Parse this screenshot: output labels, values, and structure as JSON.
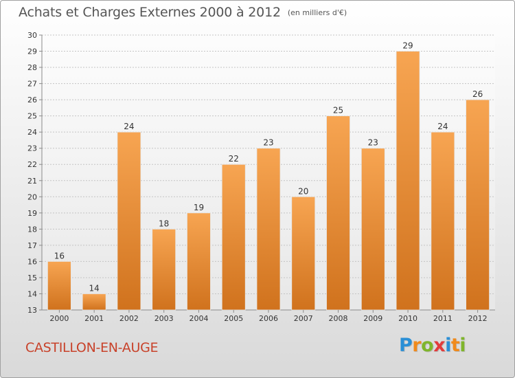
{
  "header": {
    "title": "Achats et Charges Externes 2000 à 2012",
    "unit": "(en milliers d'€)"
  },
  "footer": {
    "commune": "CASTILLON-EN-AUGE",
    "logo": {
      "letters": [
        "P",
        "r",
        "o",
        "x",
        "i",
        "t",
        "i"
      ],
      "colors": [
        "#2a8fd6",
        "#f08a1c",
        "#7fb52b",
        "#e23b3b",
        "#2a8fd6",
        "#f08a1c",
        "#7fb52b"
      ]
    }
  },
  "colors": {
    "bar_top": "#f7a552",
    "bar_bottom": "#d0721d",
    "axis": "#8a8a8a",
    "grid": "#c4c4c4",
    "text": "#333333"
  },
  "chart_data": {
    "type": "bar",
    "title": "Achats et Charges Externes 2000 à 2012",
    "subtitle": "(en milliers d'€)",
    "xlabel": "",
    "ylabel": "",
    "categories": [
      "2000",
      "2001",
      "2002",
      "2003",
      "2004",
      "2005",
      "2006",
      "2007",
      "2008",
      "2009",
      "2010",
      "2011",
      "2012"
    ],
    "values": [
      16,
      14,
      24,
      18,
      19,
      22,
      23,
      20,
      25,
      23,
      29,
      24,
      26
    ],
    "ylim": [
      13,
      30
    ],
    "yticks": [
      13,
      14,
      15,
      16,
      17,
      18,
      19,
      20,
      21,
      22,
      23,
      24,
      25,
      26,
      27,
      28,
      29,
      30
    ],
    "grid": true,
    "legend": "none"
  }
}
